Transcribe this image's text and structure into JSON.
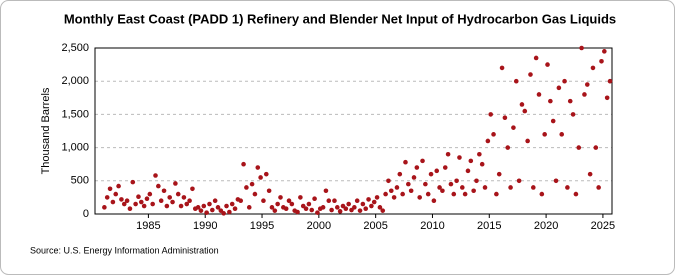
{
  "chart_data": {
    "type": "scatter",
    "title": "Monthly East Coast (PADD 1) Refinery and Blender Net Input of Hydrocarbon Gas Liquids",
    "y_label": "Thousand Barrels",
    "source": "Source: U.S. Energy Information Administration",
    "color": "#a8141a",
    "grid": true,
    "xlim": [
      1980.3,
      2025.8
    ],
    "xticks": [
      1985,
      1990,
      1995,
      2000,
      2005,
      2010,
      2015,
      2020,
      2025
    ],
    "ylim": [
      0,
      2500
    ],
    "yticks": [
      0,
      500,
      {
        "value": 1000,
        "label": "1,000"
      },
      {
        "value": 1500,
        "label": "1,500"
      },
      {
        "value": 2000,
        "label": "2,000"
      },
      {
        "value": 2500,
        "label": "2,500"
      }
    ],
    "series": [
      {
        "name": "East Coast (PADD 1)",
        "x": [
          1981.125,
          1981.375,
          1981.625,
          1981.875,
          1982.125,
          1982.375,
          1982.625,
          1982.875,
          1983.125,
          1983.375,
          1983.625,
          1983.875,
          1984.125,
          1984.375,
          1984.625,
          1984.875,
          1985.125,
          1985.375,
          1985.625,
          1985.875,
          1986.125,
          1986.375,
          1986.625,
          1986.875,
          1987.125,
          1987.375,
          1987.625,
          1987.875,
          1988.125,
          1988.375,
          1988.625,
          1988.875,
          1989.125,
          1989.375,
          1989.625,
          1989.875,
          1990.125,
          1990.375,
          1990.625,
          1990.875,
          1991.125,
          1991.375,
          1991.625,
          1991.875,
          1992.125,
          1992.375,
          1992.625,
          1992.875,
          1993.125,
          1993.375,
          1993.625,
          1993.875,
          1994.125,
          1994.375,
          1994.625,
          1994.875,
          1995.125,
          1995.375,
          1995.625,
          1995.875,
          1996.125,
          1996.375,
          1996.625,
          1996.875,
          1997.125,
          1997.375,
          1997.625,
          1997.875,
          1998.125,
          1998.375,
          1998.625,
          1998.875,
          1999.125,
          1999.375,
          1999.625,
          1999.875,
          2000.125,
          2000.375,
          2000.625,
          2000.875,
          2001.125,
          2001.375,
          2001.625,
          2001.875,
          2002.125,
          2002.375,
          2002.625,
          2002.875,
          2003.125,
          2003.375,
          2003.625,
          2003.875,
          2004.125,
          2004.375,
          2004.625,
          2004.875,
          2005.125,
          2005.375,
          2005.625,
          2005.875,
          2006.125,
          2006.375,
          2006.625,
          2006.875,
          2007.125,
          2007.375,
          2007.625,
          2007.875,
          2008.125,
          2008.375,
          2008.625,
          2008.875,
          2009.125,
          2009.375,
          2009.625,
          2009.875,
          2010.125,
          2010.375,
          2010.625,
          2010.875,
          2011.125,
          2011.375,
          2011.625,
          2011.875,
          2012.125,
          2012.375,
          2012.625,
          2012.875,
          2013.125,
          2013.375,
          2013.625,
          2013.875,
          2014.125,
          2014.375,
          2014.625,
          2014.875,
          2015.125,
          2015.375,
          2015.625,
          2015.875,
          2016.125,
          2016.375,
          2016.625,
          2016.875,
          2017.125,
          2017.375,
          2017.625,
          2017.875,
          2018.125,
          2018.375,
          2018.625,
          2018.875,
          2019.125,
          2019.375,
          2019.625,
          2019.875,
          2020.125,
          2020.375,
          2020.625,
          2020.875,
          2021.125,
          2021.375,
          2021.625,
          2021.875,
          2022.125,
          2022.375,
          2022.625,
          2022.875,
          2023.125,
          2023.375,
          2023.625,
          2023.875,
          2024.125,
          2024.375,
          2024.625,
          2024.875,
          2025.125,
          2025.375,
          2025.625
        ],
        "values": [
          100,
          250,
          380,
          180,
          300,
          420,
          220,
          150,
          200,
          80,
          480,
          150,
          260,
          180,
          120,
          230,
          300,
          150,
          580,
          420,
          200,
          350,
          120,
          250,
          180,
          460,
          300,
          120,
          250,
          150,
          200,
          380,
          80,
          100,
          50,
          120,
          20,
          150,
          60,
          200,
          100,
          50,
          10,
          120,
          30,
          150,
          80,
          220,
          200,
          750,
          400,
          100,
          450,
          300,
          700,
          550,
          200,
          600,
          350,
          100,
          50,
          150,
          250,
          100,
          80,
          200,
          150,
          50,
          30,
          250,
          120,
          80,
          150,
          60,
          230,
          20,
          80,
          100,
          350,
          200,
          60,
          200,
          100,
          40,
          120,
          80,
          150,
          60,
          100,
          200,
          50,
          150,
          80,
          220,
          120,
          180,
          250,
          100,
          50,
          300,
          500,
          350,
          250,
          400,
          600,
          300,
          780,
          450,
          350,
          550,
          700,
          250,
          800,
          450,
          300,
          600,
          200,
          650,
          400,
          350,
          700,
          900,
          450,
          300,
          500,
          850,
          400,
          300,
          650,
          800,
          350,
          500,
          900,
          750,
          400,
          1100,
          1500,
          1200,
          300,
          600,
          2200,
          1450,
          1000,
          400,
          1300,
          2000,
          500,
          1650,
          1550,
          1100,
          2100,
          400,
          2350,
          1800,
          300,
          1200,
          2250,
          1700,
          1400,
          500,
          1900,
          1200,
          2000,
          400,
          1700,
          1500,
          300,
          1000,
          2500,
          1800,
          1950,
          600,
          2200,
          1000,
          400,
          2300,
          2450,
          1750,
          2000
        ]
      }
    ]
  }
}
